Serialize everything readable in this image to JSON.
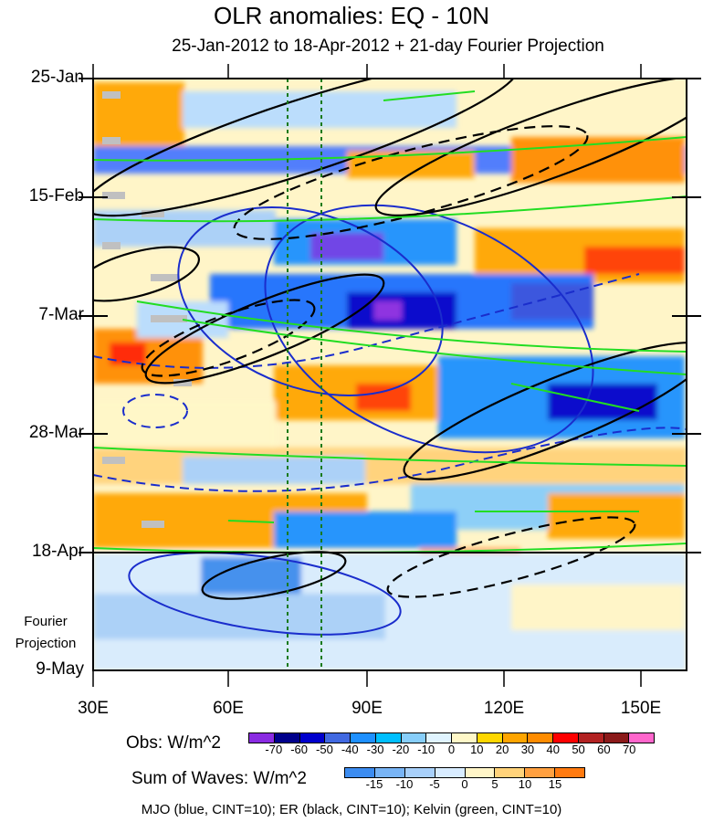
{
  "title": "OLR anomalies: EQ - 10N",
  "subtitle": "25-Jan-2012 to 18-Apr-2012 + 21-day Fourier Projection",
  "y_ticks": [
    "25-Jan",
    "15-Feb",
    "7-Mar",
    "28-Mar",
    "18-Apr",
    "9-May"
  ],
  "fourier_label": [
    "Fourier",
    "Projection"
  ],
  "x_ticks": [
    "30E",
    "60E",
    "90E",
    "120E",
    "150E"
  ],
  "colorbar_obs": {
    "title": "Obs: W/m^2",
    "labels": [
      "-70",
      "-60",
      "-50",
      "-40",
      "-30",
      "-20",
      "-10",
      "0",
      "10",
      "20",
      "30",
      "40",
      "50",
      "60",
      "70"
    ],
    "colors": [
      "#8a2be2",
      "#00008b",
      "#0000cd",
      "#4169e1",
      "#1e90ff",
      "#00bfff",
      "#87cefa",
      "#e0f4ff",
      "#fff8c8",
      "#ffd700",
      "#ffa500",
      "#ff8c00",
      "#ff0000",
      "#b22222",
      "#8b1a1a",
      "#ff66cc"
    ]
  },
  "colorbar_waves": {
    "title": "Sum of Waves: W/m^2",
    "labels": [
      "-15",
      "-10",
      "-5",
      "0",
      "5",
      "10",
      "15"
    ],
    "colors": [
      "#3c8cf0",
      "#78b4f5",
      "#a8d0fa",
      "#d8ecff",
      "#fff5c8",
      "#ffd27a",
      "#ffa040",
      "#ff7a10"
    ]
  },
  "footnote": "MJO (blue, CINT=10); ER (black, CINT=10); Kelvin (green, CINT=10)",
  "chart_data": {
    "type": "heatmap",
    "title": "OLR anomalies: EQ - 10N",
    "subtitle": "25-Jan-2012 to 18-Apr-2012 + 21-day Fourier Projection",
    "x_axis": {
      "range": [
        "30E",
        "160E"
      ],
      "ticks": [
        "30E",
        "60E",
        "90E",
        "120E",
        "150E"
      ]
    },
    "y_axis": {
      "range": [
        "25-Jan-2012",
        "9-May-2012"
      ],
      "ticks": [
        "25-Jan",
        "15-Feb",
        "7-Mar",
        "28-Mar",
        "18-Apr",
        "9-May"
      ],
      "direction": "downward"
    },
    "observation_end": "18-Apr",
    "reference_lines_lon": [
      72,
      80
    ],
    "overlays": [
      {
        "name": "MJO",
        "color": "blue",
        "cint": 10
      },
      {
        "name": "ER",
        "color": "black",
        "cint": 10
      },
      {
        "name": "Kelvin",
        "color": "green",
        "cint": 10
      }
    ]
  }
}
